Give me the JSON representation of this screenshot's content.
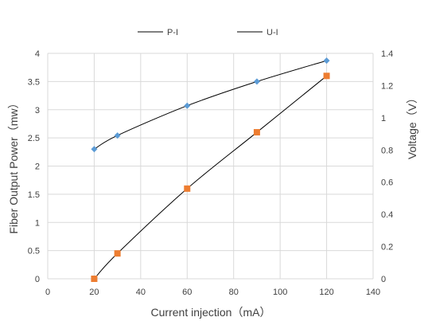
{
  "chart_data": {
    "type": "line",
    "xlabel": "Current injection（mA）",
    "ylabel_left": "Fiber Output Power（mw）",
    "ylabel_right": "Voltage（V）",
    "xlim": [
      0,
      140
    ],
    "ylim_left": [
      0,
      4
    ],
    "ylim_right": [
      0,
      1.4
    ],
    "x_ticks": [
      "0",
      "20",
      "40",
      "60",
      "80",
      "100",
      "120",
      "140"
    ],
    "y_left_ticks": [
      "0",
      "0.5",
      "1",
      "1.5",
      "2",
      "2.5",
      "3",
      "3.5",
      "4"
    ],
    "y_right_ticks": [
      "0",
      "0.2",
      "0.4",
      "0.6",
      "0.8",
      "1",
      "1.2",
      "1.4"
    ],
    "grid": true,
    "legend_position": "top",
    "series": [
      {
        "name": "P-I",
        "axis": "left",
        "marker": "square",
        "marker_color": "#ED7D31",
        "line_color": "#000000",
        "x": [
          20,
          30,
          60,
          90,
          120
        ],
        "y": [
          0,
          0.45,
          1.6,
          2.6,
          3.6
        ]
      },
      {
        "name": "U-I",
        "axis": "right",
        "marker": "diamond",
        "marker_color": "#5B9BD5",
        "line_color": "#000000",
        "x": [
          20,
          30,
          60,
          90,
          120
        ],
        "y": [
          0.805,
          0.89,
          1.075,
          1.225,
          1.355
        ]
      }
    ]
  }
}
